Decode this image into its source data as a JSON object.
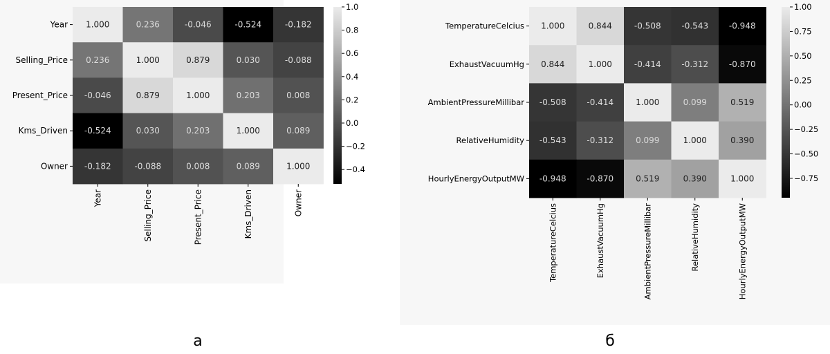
{
  "colors": {
    "high": "#ebebeb",
    "low": "#000000",
    "panel_bg": "#f7f7f7",
    "text_on_light": "#222222",
    "text_on_dark": "#dcdcdc"
  },
  "chart_data": [
    {
      "type": "heatmap",
      "title": "",
      "caption": "а",
      "variables": [
        "Year",
        "Selling_Price",
        "Present_Price",
        "Kms_Driven",
        "Owner"
      ],
      "matrix": [
        [
          1.0,
          0.236,
          -0.046,
          -0.524,
          -0.182
        ],
        [
          0.236,
          1.0,
          0.879,
          0.03,
          -0.088
        ],
        [
          -0.046,
          0.879,
          1.0,
          0.203,
          0.008
        ],
        [
          -0.524,
          0.03,
          0.203,
          1.0,
          0.089
        ],
        [
          -0.182,
          -0.088,
          0.008,
          0.089,
          1.0
        ]
      ],
      "cell_labels": [
        [
          "1.000",
          "0.236",
          "-0.046",
          "-0.524",
          "-0.182"
        ],
        [
          "0.236",
          "1.000",
          "0.879",
          "0.030",
          "-0.088"
        ],
        [
          "-0.046",
          "0.879",
          "1.000",
          "0.203",
          "0.008"
        ],
        [
          "-0.524",
          "0.030",
          "0.203",
          "1.000",
          "0.089"
        ],
        [
          "-0.182",
          "-0.088",
          "0.008",
          "0.089",
          "1.000"
        ]
      ],
      "colorbar": {
        "range": [
          -0.524,
          1.0
        ],
        "ticks": [
          1.0,
          0.8,
          0.6,
          0.4,
          0.2,
          0.0,
          -0.2,
          -0.4
        ],
        "tick_labels": [
          "1.0",
          "0.8",
          "0.6",
          "0.4",
          "0.2",
          "0.0",
          "−0.2",
          "−0.4"
        ]
      }
    },
    {
      "type": "heatmap",
      "title": "",
      "caption": "б",
      "variables": [
        "TemperatureCelcius",
        "ExhaustVacuumHg",
        "AmbientPressureMillibar",
        "RelativeHumidity",
        "HourlyEnergyOutputMW"
      ],
      "matrix": [
        [
          1.0,
          0.844,
          -0.508,
          -0.543,
          -0.948
        ],
        [
          0.844,
          1.0,
          -0.414,
          -0.312,
          -0.87
        ],
        [
          -0.508,
          -0.414,
          1.0,
          0.099,
          0.519
        ],
        [
          -0.543,
          -0.312,
          0.099,
          1.0,
          0.39
        ],
        [
          -0.948,
          -0.87,
          0.519,
          0.39,
          1.0
        ]
      ],
      "cell_labels": [
        [
          "1.000",
          "0.844",
          "-0.508",
          "-0.543",
          "-0.948"
        ],
        [
          "0.844",
          "1.000",
          "-0.414",
          "-0.312",
          "-0.870"
        ],
        [
          "-0.508",
          "-0.414",
          "1.000",
          "0.099",
          "0.519"
        ],
        [
          "-0.543",
          "-0.312",
          "0.099",
          "1.000",
          "0.390"
        ],
        [
          "-0.948",
          "-0.870",
          "0.519",
          "0.390",
          "1.000"
        ]
      ],
      "colorbar": {
        "range": [
          -0.948,
          1.0
        ],
        "ticks": [
          1.0,
          0.75,
          0.5,
          0.25,
          0.0,
          -0.25,
          -0.5,
          -0.75
        ],
        "tick_labels": [
          "1.00",
          "0.75",
          "0.50",
          "0.25",
          "0.00",
          "−0.25",
          "−0.50",
          "−0.75"
        ]
      }
    }
  ]
}
